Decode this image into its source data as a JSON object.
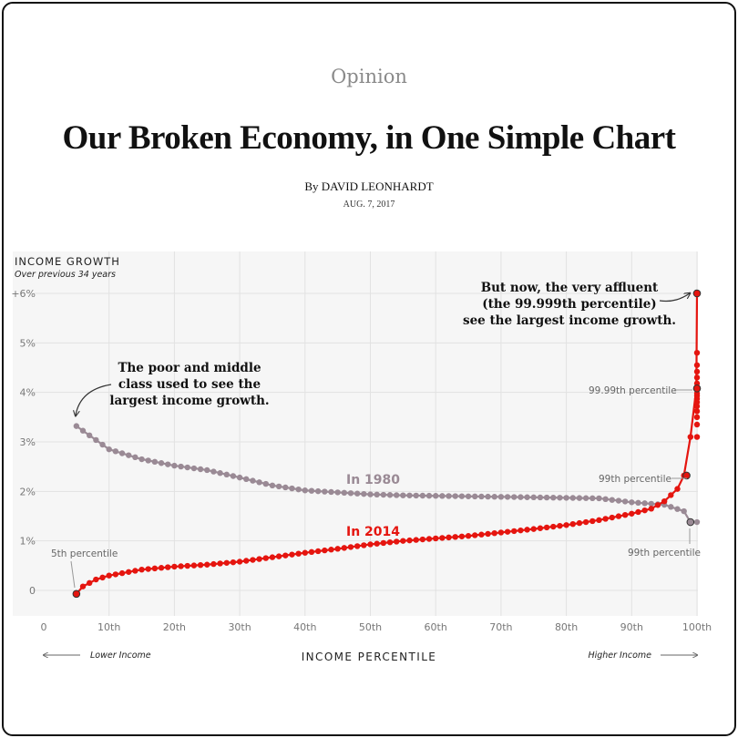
{
  "article": {
    "section": "Opinion",
    "headline": "Our Broken Economy, in One Simple Chart",
    "byline": "By DAVID LEONHARDT",
    "date": "AUG. 7, 2017"
  },
  "colors": {
    "series_2014": "#e5150f",
    "series_1980": "#9a8a95",
    "grid": "#e2e2e2",
    "plot_bg": "#f6f6f6"
  },
  "chart_data": {
    "type": "line",
    "title": "INCOME GROWTH",
    "subtitle": "Over previous 34 years",
    "xlabel": "INCOME PERCENTILE",
    "x_left_note": "Lower Income",
    "x_right_note": "Higher Income",
    "xlim": [
      0,
      100
    ],
    "ylim": [
      -0.5,
      6.2
    ],
    "x_ticks": [
      {
        "v": 0,
        "label": "0"
      },
      {
        "v": 10,
        "label": "10th"
      },
      {
        "v": 20,
        "label": "20th"
      },
      {
        "v": 30,
        "label": "30th"
      },
      {
        "v": 40,
        "label": "40th"
      },
      {
        "v": 50,
        "label": "50th"
      },
      {
        "v": 60,
        "label": "60th"
      },
      {
        "v": 70,
        "label": "70th"
      },
      {
        "v": 80,
        "label": "80th"
      },
      {
        "v": 90,
        "label": "90th"
      },
      {
        "v": 100,
        "label": "100th"
      }
    ],
    "y_ticks": [
      {
        "v": 0,
        "label": "0"
      },
      {
        "v": 1,
        "label": "1%"
      },
      {
        "v": 2,
        "label": "2%"
      },
      {
        "v": 3,
        "label": "3%"
      },
      {
        "v": 4,
        "label": "4%"
      },
      {
        "v": 5,
        "label": "5%"
      },
      {
        "v": 6,
        "label": "+6%"
      }
    ],
    "series": [
      {
        "name": "In 1980",
        "x": [
          5,
          10,
          15,
          20,
          25,
          30,
          35,
          40,
          45,
          50,
          55,
          60,
          65,
          70,
          75,
          80,
          85,
          90,
          95,
          98,
          99,
          100
        ],
        "y": [
          3.32,
          2.85,
          2.65,
          2.52,
          2.43,
          2.28,
          2.12,
          2.02,
          1.98,
          1.94,
          1.92,
          1.91,
          1.9,
          1.89,
          1.88,
          1.87,
          1.86,
          1.78,
          1.73,
          1.6,
          1.38,
          1.38
        ]
      },
      {
        "name": "In 2014",
        "x": [
          5,
          6,
          8,
          10,
          15,
          20,
          25,
          30,
          35,
          40,
          45,
          50,
          55,
          60,
          65,
          70,
          75,
          80,
          85,
          90,
          93,
          95,
          97,
          98,
          99,
          99.9,
          100
        ],
        "y": [
          -0.07,
          0.08,
          0.22,
          0.3,
          0.42,
          0.48,
          0.52,
          0.58,
          0.67,
          0.76,
          0.84,
          0.93,
          1.0,
          1.05,
          1.1,
          1.17,
          1.24,
          1.32,
          1.42,
          1.55,
          1.65,
          1.8,
          2.05,
          2.32,
          3.1,
          4.08,
          6.0
        ]
      }
    ],
    "labels": {
      "series_1980": "In 1980",
      "series_2014": "In 2014",
      "p5": "5th percentile",
      "p99_2014": "99th percentile",
      "p9999": "99.99th percentile",
      "p99_1980": "99th percentile"
    },
    "annotations": {
      "poor": [
        "The poor and middle",
        "class used to see the",
        "largest income growth."
      ],
      "affluent": [
        "But now, the very affluent",
        "(the 99.999th percentile)",
        "see the largest income growth."
      ]
    }
  }
}
